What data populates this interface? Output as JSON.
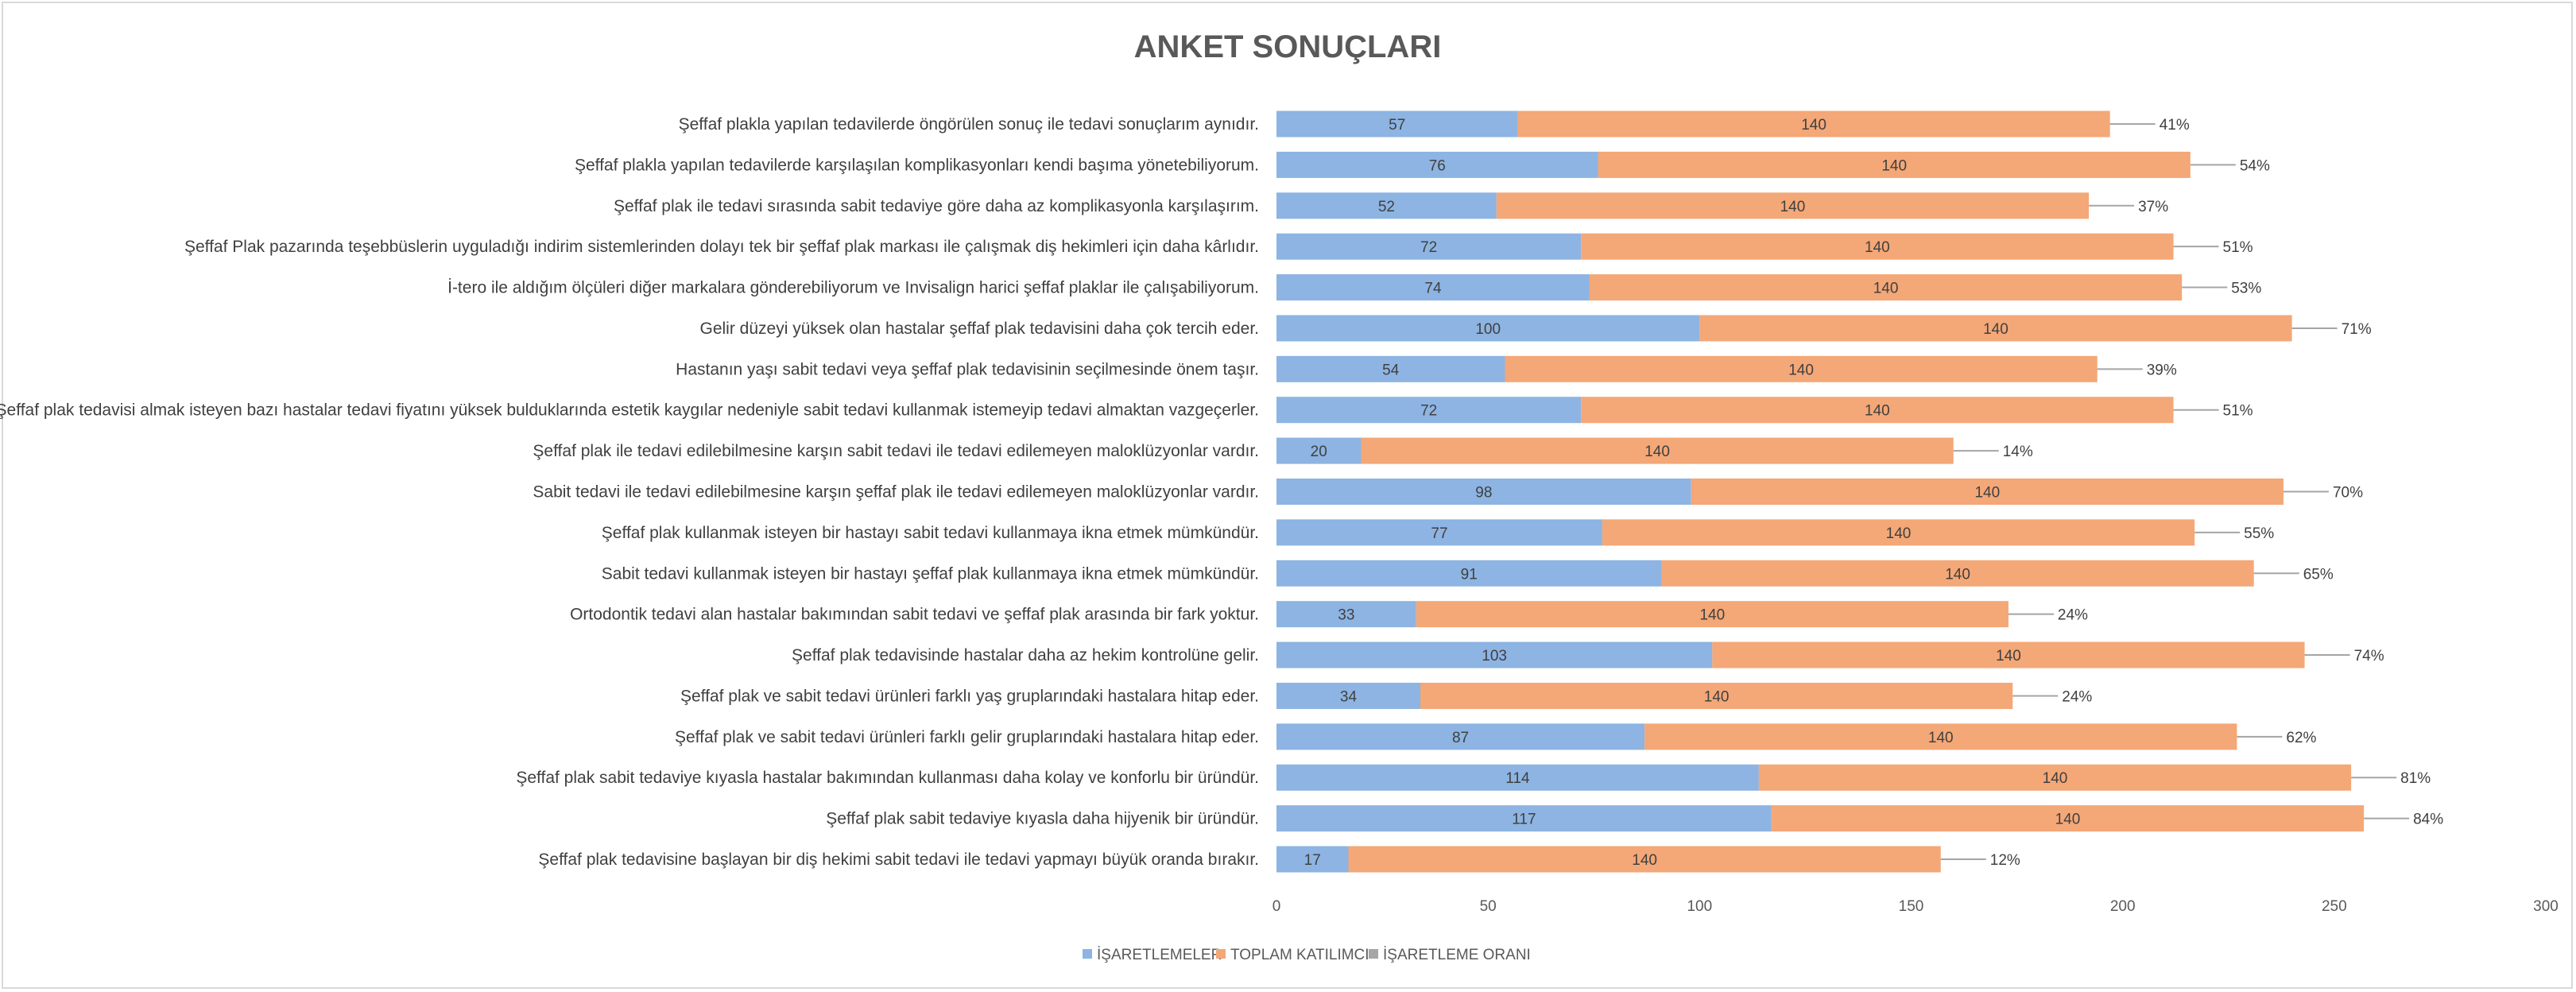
{
  "chart_data": {
    "type": "bar",
    "orientation": "horizontal",
    "stacked": true,
    "title": "ANKET SONUÇLARI",
    "xlabel": "",
    "ylabel": "",
    "xlim": [
      0,
      300
    ],
    "xticks": [
      0,
      50,
      100,
      150,
      200,
      250,
      300
    ],
    "grid": false,
    "legend_position": "bottom",
    "categories": [
      "Şeffaf plakla yapılan tedavilerde öngörülen sonuç ile tedavi sonuçlarım aynıdır.",
      "Şeffaf plakla yapılan tedavilerde karşılaşılan komplikasyonları kendi başıma yönetebiliyorum.",
      "Şeffaf plak ile tedavi sırasında sabit tedaviye göre daha az komplikasyonla karşılaşırım.",
      "Şeffaf Plak pazarında teşebbüslerin uyguladığı indirim sistemlerinden dolayı tek bir şeffaf plak markası ile çalışmak diş hekimleri için daha kârlıdır.",
      "İ-tero ile aldığım ölçüleri diğer markalara gönderebiliyorum ve Invisalign harici şeffaf plaklar ile çalışabiliyorum.",
      "Gelir düzeyi yüksek olan hastalar şeffaf plak tedavisini daha çok tercih eder.",
      "Hastanın yaşı sabit tedavi veya şeffaf plak tedavisinin seçilmesinde önem taşır.",
      "Şeffaf plak tedavisi almak isteyen bazı hastalar tedavi fiyatını yüksek bulduklarında estetik kaygılar nedeniyle sabit tedavi kullanmak istemeyip tedavi almaktan vazgeçerler.",
      "Şeffaf plak ile tedavi edilebilmesine karşın sabit tedavi ile tedavi edilemeyen maloklüzyonlar vardır.",
      "Sabit tedavi ile tedavi edilebilmesine karşın şeffaf plak ile tedavi edilemeyen maloklüzyonlar vardır.",
      "Şeffaf plak kullanmak isteyen bir hastayı sabit tedavi kullanmaya ikna etmek mümkündür.",
      "Sabit tedavi kullanmak isteyen bir hastayı şeffaf plak kullanmaya ikna etmek mümkündür.",
      "Ortodontik tedavi alan hastalar bakımından sabit tedavi ve şeffaf plak arasında bir fark yoktur.",
      "Şeffaf plak tedavisinde hastalar daha az hekim kontrolüne gelir.",
      "Şeffaf plak ve sabit tedavi ürünleri farklı yaş gruplarındaki hastalara hitap eder.",
      "Şeffaf plak ve sabit tedavi ürünleri farklı gelir gruplarındaki hastalara hitap eder.",
      "Şeffaf plak sabit tedaviye kıyasla hastalar bakımından kullanması daha kolay ve konforlu bir üründür.",
      "Şeffaf plak sabit tedaviye kıyasla daha hijyenik bir üründür.",
      "Şeffaf plak tedavisine başlayan bir diş hekimi sabit tedavi ile tedavi yapmayı büyük oranda bırakır."
    ],
    "series": [
      {
        "name": "İŞARETLEMELER",
        "color": "#8db4e2",
        "values": [
          57,
          76,
          52,
          72,
          74,
          100,
          54,
          72,
          20,
          98,
          77,
          91,
          33,
          103,
          34,
          87,
          114,
          117,
          17
        ]
      },
      {
        "name": "TOPLAM KATILIMCI",
        "color": "#f4a777",
        "values": [
          140,
          140,
          140,
          140,
          140,
          140,
          140,
          140,
          140,
          140,
          140,
          140,
          140,
          140,
          140,
          140,
          140,
          140,
          140
        ]
      },
      {
        "name": "İŞARETLEME ORANI",
        "color": "#a5a5a5",
        "values": [
          "41%",
          "54%",
          "37%",
          "51%",
          "53%",
          "71%",
          "39%",
          "51%",
          "14%",
          "70%",
          "55%",
          "65%",
          "24%",
          "74%",
          "24%",
          "62%",
          "81%",
          "84%",
          "12%"
        ]
      }
    ]
  }
}
